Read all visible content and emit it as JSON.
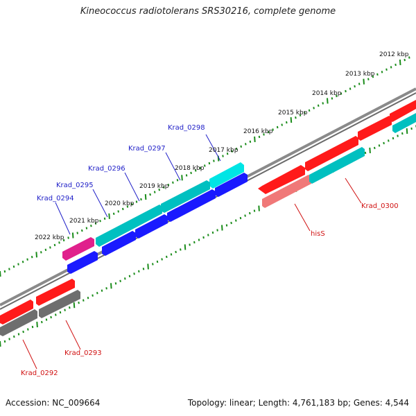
{
  "title": "Kineococcus radiotolerans SRS30216, complete genome",
  "footer": {
    "accession": "Accession: NC_009664",
    "topology": "Topology: linear; Length: 4,761,183 bp; Genes: 4,544"
  },
  "colors": {
    "forward_cds": "#1a1aff",
    "forward_gene": "#00c8c8",
    "forward_rna": "#e0208c",
    "reverse_cds": "#ff1a1a",
    "reverse_gene": "#6e6e6e",
    "reverse_rna": "#f07878",
    "axis": "#808080",
    "ticks": "#1a8c1a"
  },
  "scale_labels": [
    "2012 kbp",
    "2013 kbp",
    "2014 kbp",
    "2015 kbp",
    "2016 kbp",
    "2017 kbp",
    "2018 kbp",
    "2019 kbp",
    "2020 kbp",
    "2021 kbp",
    "2022 kbp"
  ],
  "gene_labels": {
    "forward": [
      "Krad_0298",
      "Krad_0297",
      "Krad_0296",
      "Krad_0295",
      "Krad_0294"
    ],
    "reverse": [
      "Krad_0300",
      "hisS",
      "Krad_0293",
      "Krad_0292"
    ]
  }
}
